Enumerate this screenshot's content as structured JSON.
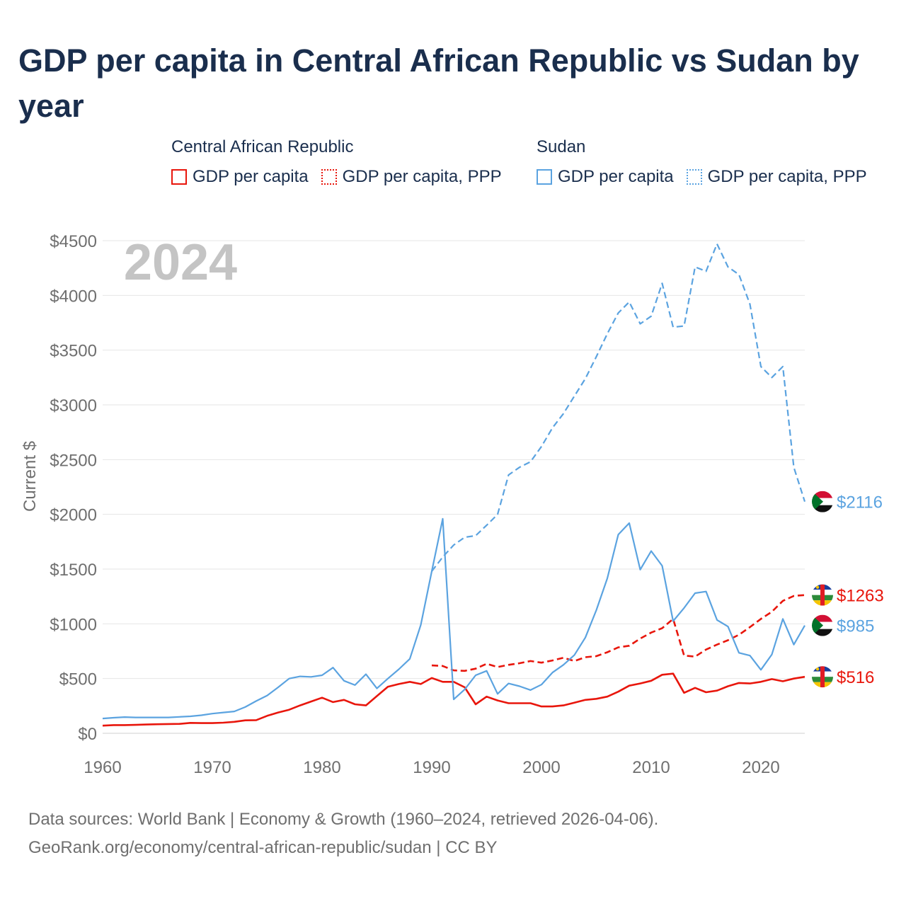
{
  "title": "GDP per capita in Central African Republic vs Sudan by year",
  "legend": {
    "groups": [
      {
        "name": "Central African Republic",
        "color": "#e8160c",
        "items": [
          {
            "label": "GDP per capita",
            "style": "solid"
          },
          {
            "label": "GDP per capita, PPP",
            "style": "dotted"
          }
        ]
      },
      {
        "name": "Sudan",
        "color": "#5ba3e0",
        "items": [
          {
            "label": "GDP per capita",
            "style": "solid"
          },
          {
            "label": "GDP per capita, PPP",
            "style": "dotted"
          }
        ]
      }
    ]
  },
  "source": {
    "line1": "Data sources: World Bank | Economy & Growth (1960–2024, retrieved 2026-04-06).",
    "line2": "GeoRank.org/economy/central-african-republic/sudan | CC BY"
  },
  "year_watermark": "2024",
  "chart_data": {
    "type": "line",
    "title": "GDP per capita in Central African Republic vs Sudan by year",
    "xlabel": "",
    "ylabel": "Current $",
    "xlim": [
      1960,
      2024
    ],
    "ylim": [
      0,
      4500
    ],
    "xticks": [
      1960,
      1970,
      1980,
      1990,
      2000,
      2010,
      2020
    ],
    "yticks": [
      0,
      500,
      1000,
      1500,
      2000,
      2500,
      3000,
      3500,
      4000,
      4500
    ],
    "ytick_labels": [
      "$0",
      "$500",
      "$1000",
      "$1500",
      "$2000",
      "$2500",
      "$3000",
      "$3500",
      "$4000",
      "$4500"
    ],
    "grid": true,
    "series": [
      {
        "name": "Central African Republic — GDP per capita",
        "color": "#e8160c",
        "dash": "solid",
        "end_label": "$516",
        "start_year": 1960,
        "values": [
          70,
          75,
          75,
          77,
          80,
          83,
          85,
          86,
          95,
          93,
          93,
          97,
          105,
          118,
          120,
          160,
          190,
          215,
          255,
          290,
          325,
          285,
          305,
          265,
          255,
          340,
          425,
          450,
          470,
          450,
          505,
          470,
          470,
          420,
          265,
          335,
          300,
          275,
          275,
          275,
          245,
          245,
          255,
          280,
          305,
          315,
          335,
          380,
          435,
          455,
          480,
          535,
          545,
          370,
          415,
          375,
          390,
          430,
          460,
          455,
          470,
          495,
          475,
          500,
          516
        ]
      },
      {
        "name": "Central African Republic — GDP per capita, PPP",
        "color": "#e8160c",
        "dash": "dashed",
        "end_label": "$1263",
        "start_year": 1990,
        "values": [
          620,
          615,
          575,
          570,
          590,
          635,
          605,
          625,
          640,
          660,
          645,
          665,
          690,
          660,
          695,
          705,
          740,
          785,
          800,
          865,
          920,
          960,
          1045,
          710,
          700,
          765,
          810,
          850,
          900,
          970,
          1045,
          1110,
          1210,
          1255,
          1263
        ]
      },
      {
        "name": "Sudan — GDP per capita",
        "color": "#5ba3e0",
        "dash": "solid",
        "end_label": "$985",
        "start_year": 1960,
        "values": [
          135,
          142,
          148,
          145,
          145,
          145,
          145,
          150,
          155,
          165,
          180,
          190,
          200,
          240,
          295,
          345,
          420,
          500,
          520,
          515,
          530,
          600,
          480,
          440,
          540,
          410,
          500,
          585,
          680,
          990,
          1480,
          1960,
          310,
          400,
          530,
          570,
          360,
          455,
          430,
          395,
          445,
          555,
          625,
          715,
          875,
          1125,
          1415,
          1815,
          1920,
          1495,
          1665,
          1530,
          1025,
          1145,
          1280,
          1295,
          1035,
          975,
          735,
          710,
          580,
          720,
          1045,
          810,
          985
        ]
      },
      {
        "name": "Sudan — GDP per capita, PPP",
        "color": "#5ba3e0",
        "dash": "dashed",
        "end_label": "$2116",
        "start_year": 1990,
        "values": [
          1480,
          1610,
          1720,
          1790,
          1805,
          1900,
          2000,
          2360,
          2430,
          2480,
          2620,
          2790,
          2920,
          3080,
          3240,
          3440,
          3650,
          3840,
          3940,
          3740,
          3810,
          4110,
          3710,
          3720,
          4260,
          4220,
          4470,
          4260,
          4190,
          3920,
          3350,
          3250,
          3350,
          2430,
          2116
        ]
      }
    ]
  }
}
